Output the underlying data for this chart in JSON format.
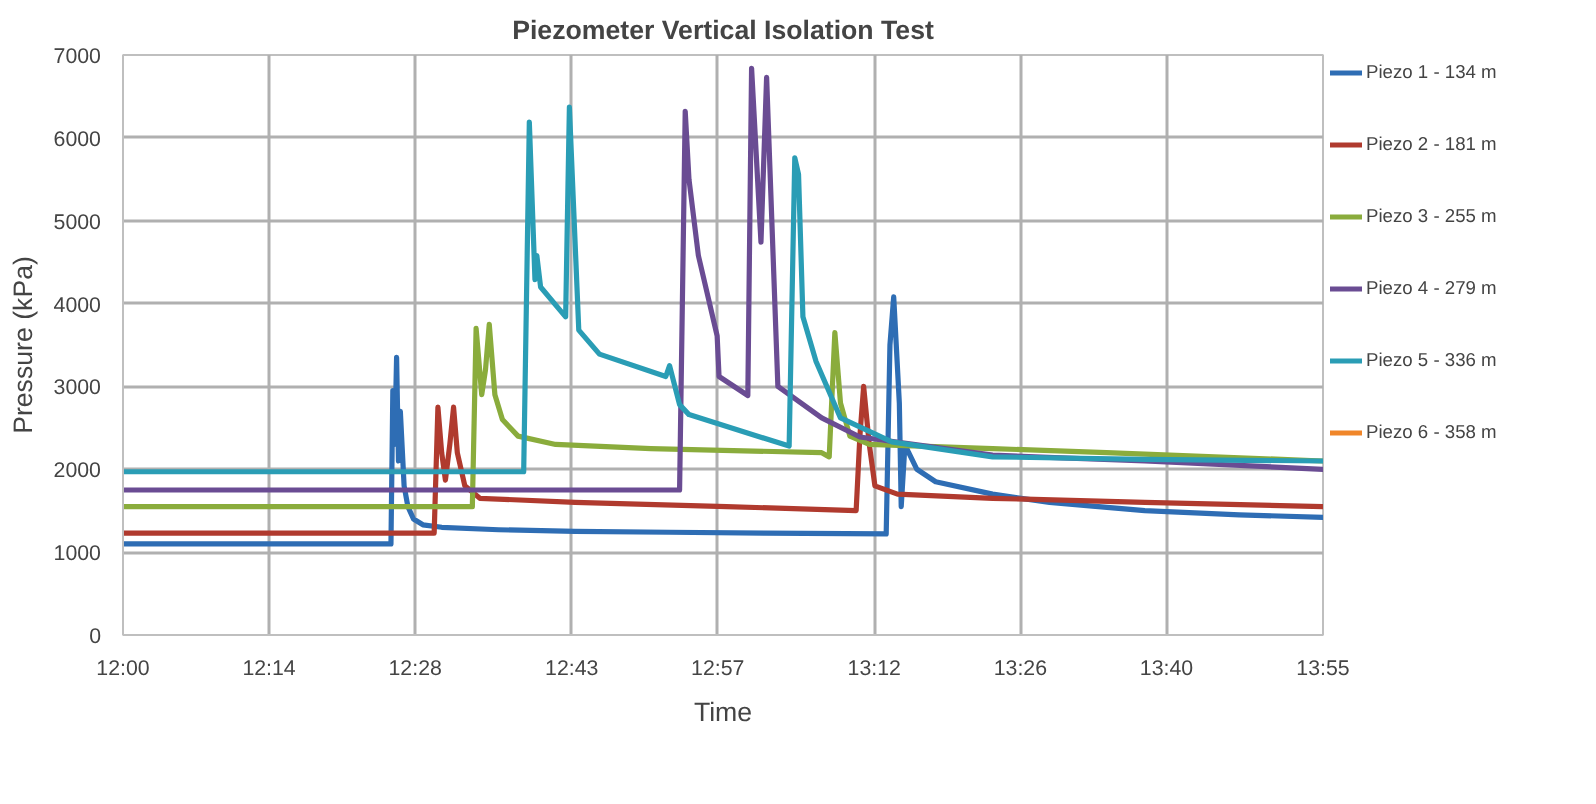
{
  "chart_data": {
    "type": "line",
    "title": "Piezometer Vertical Isolation Test",
    "xlabel": "Time",
    "ylabel": "Pressure (kPa)",
    "xlim": [
      12.0,
      13.9167
    ],
    "xticks": [
      {
        "value": 12.0,
        "label": "12:00"
      },
      {
        "value": 12.2333,
        "label": "12:14"
      },
      {
        "value": 12.4667,
        "label": "12:28"
      },
      {
        "value": 12.7167,
        "label": "12:43"
      },
      {
        "value": 12.95,
        "label": "12:57"
      },
      {
        "value": 13.2,
        "label": "13:12"
      },
      {
        "value": 13.4333,
        "label": "13:26"
      },
      {
        "value": 13.6667,
        "label": "13:40"
      },
      {
        "value": 13.9167,
        "label": "13:55"
      }
    ],
    "ylim": [
      0,
      7000
    ],
    "yticks": [
      0,
      1000,
      2000,
      3000,
      4000,
      5000,
      6000,
      7000
    ],
    "grid": true,
    "legend": "right",
    "line_style": "solid",
    "marker": "none",
    "series": [
      {
        "name": "Piezo 1 - 134 m",
        "color": "#2e6db4",
        "x": [
          12.0,
          12.428,
          12.431,
          12.434,
          12.437,
          12.44,
          12.443,
          12.449,
          12.455,
          12.464,
          12.479,
          12.509,
          12.6,
          12.722,
          12.873,
          13.025,
          13.219,
          13.225,
          13.231,
          13.24,
          13.243,
          13.249,
          13.255,
          13.268,
          13.298,
          13.389,
          13.48,
          13.632,
          13.783,
          13.9167
        ],
        "values": [
          1100,
          1100,
          2950,
          2300,
          3350,
          2100,
          2700,
          1800,
          1550,
          1400,
          1330,
          1300,
          1270,
          1250,
          1240,
          1230,
          1220,
          3500,
          4080,
          2800,
          1550,
          2300,
          2200,
          2000,
          1850,
          1700,
          1600,
          1500,
          1450,
          1420
        ]
      },
      {
        "name": "Piezo 2 - 181 m",
        "color": "#b03a2e",
        "x": [
          12.0,
          12.497,
          12.503,
          12.509,
          12.515,
          12.522,
          12.528,
          12.534,
          12.546,
          12.57,
          12.722,
          12.964,
          13.171,
          13.177,
          13.183,
          13.192,
          13.201,
          13.237,
          13.389,
          13.632,
          13.9167
        ],
        "values": [
          1230,
          1230,
          2750,
          2200,
          1870,
          2300,
          2750,
          2200,
          1800,
          1650,
          1600,
          1550,
          1500,
          2400,
          3000,
          2300,
          1800,
          1700,
          1650,
          1600,
          1550
        ]
      },
      {
        "name": "Piezo 3 - 255 m",
        "color": "#8aac3c",
        "x": [
          12.0,
          12.558,
          12.564,
          12.573,
          12.579,
          12.585,
          12.594,
          12.606,
          12.631,
          12.691,
          12.843,
          13.116,
          13.128,
          13.137,
          13.146,
          13.161,
          13.192,
          13.389,
          13.571,
          13.9167
        ],
        "values": [
          1550,
          1550,
          3700,
          2900,
          3200,
          3750,
          2900,
          2600,
          2400,
          2300,
          2250,
          2200,
          2150,
          3650,
          2800,
          2400,
          2300,
          2250,
          2200,
          2100
        ]
      },
      {
        "name": "Piezo 4 - 279 m",
        "color": "#6a4c93",
        "x": [
          12.0,
          12.889,
          12.898,
          12.904,
          12.919,
          12.949,
          12.952,
          12.998,
          13.004,
          13.019,
          13.028,
          13.046,
          13.116,
          13.177,
          13.389,
          13.632,
          13.9167
        ],
        "values": [
          1750,
          1750,
          6320,
          5500,
          4580,
          3610,
          3120,
          2890,
          6840,
          4740,
          6730,
          3000,
          2620,
          2390,
          2170,
          2100,
          2000
        ]
      },
      {
        "name": "Piezo 5 - 336 m",
        "color": "#2a9db5",
        "x": [
          12.0,
          12.64,
          12.649,
          12.658,
          12.661,
          12.667,
          12.707,
          12.713,
          12.728,
          12.761,
          12.867,
          12.873,
          12.889,
          12.904,
          13.064,
          13.073,
          13.079,
          13.086,
          13.107,
          13.146,
          13.228,
          13.389,
          13.632,
          13.9167
        ],
        "values": [
          1970,
          1970,
          6190,
          4290,
          4580,
          4200,
          3840,
          6370,
          3680,
          3390,
          3120,
          3250,
          2780,
          2660,
          2280,
          5760,
          5560,
          3840,
          3300,
          2620,
          2330,
          2150,
          2120,
          2100
        ]
      },
      {
        "name": "Piezo 6 - 358 m",
        "color": "#f0862a"
      }
    ]
  }
}
